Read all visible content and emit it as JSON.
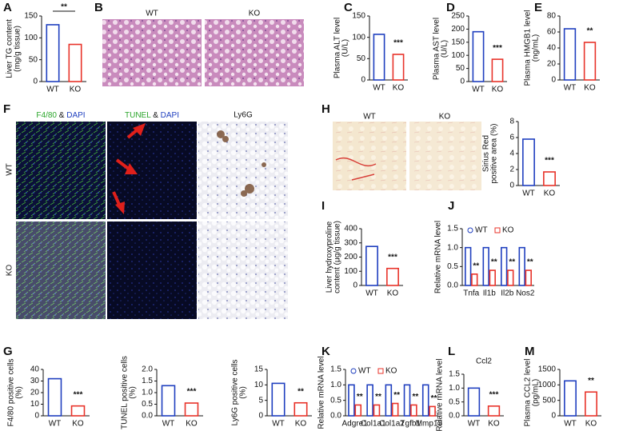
{
  "panels": {
    "B": {
      "letter": "B",
      "columns": [
        "WT",
        "KO"
      ]
    },
    "F": {
      "letter": "F",
      "columns": [
        [
          "F4/80",
          " & ",
          "DAPI"
        ],
        [
          "TUNEL",
          " & ",
          "DAPI"
        ],
        [
          "Ly6G"
        ]
      ],
      "rows": [
        "WT",
        "KO"
      ]
    },
    "H": {
      "letter": "H",
      "columns": [
        "WT",
        "KO"
      ]
    }
  },
  "chart_data": [
    {
      "type": "bar",
      "panel": "A",
      "y_label": [
        "Liver TG content",
        "(mg/g tissue)"
      ],
      "categories": [
        "WT",
        "KO"
      ],
      "values": [
        130,
        85
      ],
      "colors": [
        "#1f3fbf",
        "#e8332a"
      ],
      "ylim": [
        0,
        150
      ],
      "yticks": [
        0,
        50,
        100,
        150
      ],
      "significance": "**",
      "bracket": true
    },
    {
      "type": "bar",
      "panel": "C",
      "y_label": [
        "Plasma ALT level",
        "(U/L)"
      ],
      "categories": [
        "WT",
        "KO"
      ],
      "values": [
        107,
        60
      ],
      "colors": [
        "#1f3fbf",
        "#e8332a"
      ],
      "ylim": [
        0,
        150
      ],
      "yticks": [
        0,
        50,
        100,
        150
      ],
      "significance": "***"
    },
    {
      "type": "bar",
      "panel": "D",
      "y_label": [
        "Plasma AST level",
        "(U/L)"
      ],
      "categories": [
        "WT",
        "KO"
      ],
      "values": [
        190,
        85
      ],
      "colors": [
        "#1f3fbf",
        "#e8332a"
      ],
      "ylim": [
        0,
        250
      ],
      "yticks": [
        0,
        50,
        100,
        150,
        200,
        250
      ],
      "significance": "***"
    },
    {
      "type": "bar",
      "panel": "E",
      "y_label": [
        "Plasma HMGB1 level",
        "(ng/mL)"
      ],
      "categories": [
        "WT",
        "KO"
      ],
      "values": [
        64,
        47
      ],
      "colors": [
        "#1f3fbf",
        "#e8332a"
      ],
      "ylim": [
        0,
        80
      ],
      "yticks": [
        0,
        20,
        40,
        60,
        80
      ],
      "significance": "**"
    },
    {
      "type": "bar",
      "y_label": [
        "Sirius Red",
        "positive area (%)"
      ],
      "categories": [
        "WT",
        "KO"
      ],
      "values": [
        5.8,
        1.7
      ],
      "colors": [
        "#1f3fbf",
        "#e8332a"
      ],
      "ylim": [
        0,
        8
      ],
      "yticks": [
        0,
        2,
        4,
        6,
        8
      ],
      "significance": "***"
    },
    {
      "type": "bar",
      "panel": "I",
      "y_label": [
        "Liver hydroxyproline",
        "content (μg/g tissue)"
      ],
      "categories": [
        "WT",
        "KO"
      ],
      "values": [
        275,
        120
      ],
      "colors": [
        "#1f3fbf",
        "#e8332a"
      ],
      "ylim": [
        0,
        400
      ],
      "yticks": [
        0,
        100,
        200,
        300,
        400
      ],
      "significance": "***"
    },
    {
      "type": "grouped_bar",
      "panel": "J",
      "y_label": [
        "Relative mRNA level"
      ],
      "categories": [
        "Tnfa",
        "Il1b",
        "Il2b",
        "Nos2"
      ],
      "series": [
        {
          "name": "WT",
          "color": "#1f3fbf",
          "values": [
            1.0,
            1.0,
            1.0,
            1.0
          ]
        },
        {
          "name": "KO",
          "color": "#e8332a",
          "values": [
            0.3,
            0.4,
            0.4,
            0.4
          ]
        }
      ],
      "ylim": [
        0,
        1.5
      ],
      "yticks": [
        {
          "value": 0,
          "label": "0.0"
        },
        {
          "value": 0.5,
          "label": "0.5"
        },
        {
          "value": 1,
          "label": "1.0"
        },
        {
          "value": 1.5,
          "label": "1.5"
        }
      ],
      "significance": [
        "**",
        "**",
        "**",
        "**"
      ]
    },
    {
      "type": "bar",
      "panel": "G",
      "y_label": [
        "F4/80 positive cells",
        "(%)"
      ],
      "categories": [
        "WT",
        "KO"
      ],
      "values": [
        32,
        8.5
      ],
      "colors": [
        "#1f3fbf",
        "#e8332a"
      ],
      "ylim": [
        0,
        40
      ],
      "yticks": [
        0,
        10,
        20,
        30,
        40
      ],
      "significance": "***"
    },
    {
      "type": "bar",
      "y_label": [
        "TUNEL positive cells",
        "(%)"
      ],
      "categories": [
        "WT",
        "KO"
      ],
      "values": [
        1.3,
        0.55
      ],
      "colors": [
        "#1f3fbf",
        "#e8332a"
      ],
      "ylim": [
        0,
        2
      ],
      "yticks": [
        {
          "value": 0,
          "label": "0.0"
        },
        {
          "value": 0.5,
          "label": "0.5"
        },
        {
          "value": 1,
          "label": "1.0"
        },
        {
          "value": 1.5,
          "label": "1.5"
        },
        {
          "value": 2,
          "label": "2.0"
        }
      ],
      "significance": "***"
    },
    {
      "type": "bar",
      "y_label": [
        "Ly6G positive cells",
        "(%)"
      ],
      "categories": [
        "WT",
        "KO"
      ],
      "values": [
        10.5,
        4.2
      ],
      "colors": [
        "#1f3fbf",
        "#e8332a"
      ],
      "ylim": [
        0,
        15
      ],
      "yticks": [
        0,
        5,
        10,
        15
      ],
      "significance": "**"
    },
    {
      "type": "grouped_bar",
      "panel": "K",
      "y_label": [
        "Relative mRNA level"
      ],
      "categories": [
        "Adgre1",
        "Col1a1",
        "Col1a2",
        "Tgfb1",
        "Mmp13"
      ],
      "series": [
        {
          "name": "WT",
          "color": "#1f3fbf",
          "values": [
            1.0,
            1.0,
            1.0,
            1.0,
            1.0
          ]
        },
        {
          "name": "KO",
          "color": "#e8332a",
          "values": [
            0.35,
            0.35,
            0.4,
            0.35,
            0.3
          ]
        }
      ],
      "ylim": [
        0,
        1.5
      ],
      "yticks": [
        {
          "value": 0,
          "label": "0.0"
        },
        {
          "value": 0.5,
          "label": "0.5"
        },
        {
          "value": 1,
          "label": "1.0"
        },
        {
          "value": 1.5,
          "label": "1.5"
        }
      ],
      "significance": [
        "**",
        "**",
        "**",
        "**",
        "**"
      ]
    },
    {
      "type": "bar",
      "panel": "L",
      "title": "Ccl2",
      "y_label": [
        "Relative mRNA level"
      ],
      "categories": [
        "WT",
        "KO"
      ],
      "values": [
        1.0,
        0.35
      ],
      "colors": [
        "#1f3fbf",
        "#e8332a"
      ],
      "ylim": [
        0,
        1.5
      ],
      "yticks": [
        {
          "value": 0,
          "label": "0.0"
        },
        {
          "value": 0.5,
          "label": "0.5"
        },
        {
          "value": 1,
          "label": "1.0"
        },
        {
          "value": 1.5,
          "label": "1.5"
        }
      ],
      "significance": "***"
    },
    {
      "type": "bar",
      "panel": "M",
      "y_label": [
        "Plasma CCL2 level",
        "(pg/mL)"
      ],
      "categories": [
        "WT",
        "KO"
      ],
      "values": [
        1130,
        770
      ],
      "colors": [
        "#1f3fbf",
        "#e8332a"
      ],
      "ylim": [
        0,
        1500
      ],
      "yticks": [
        0,
        500,
        1000,
        1500
      ],
      "significance": "**"
    }
  ]
}
